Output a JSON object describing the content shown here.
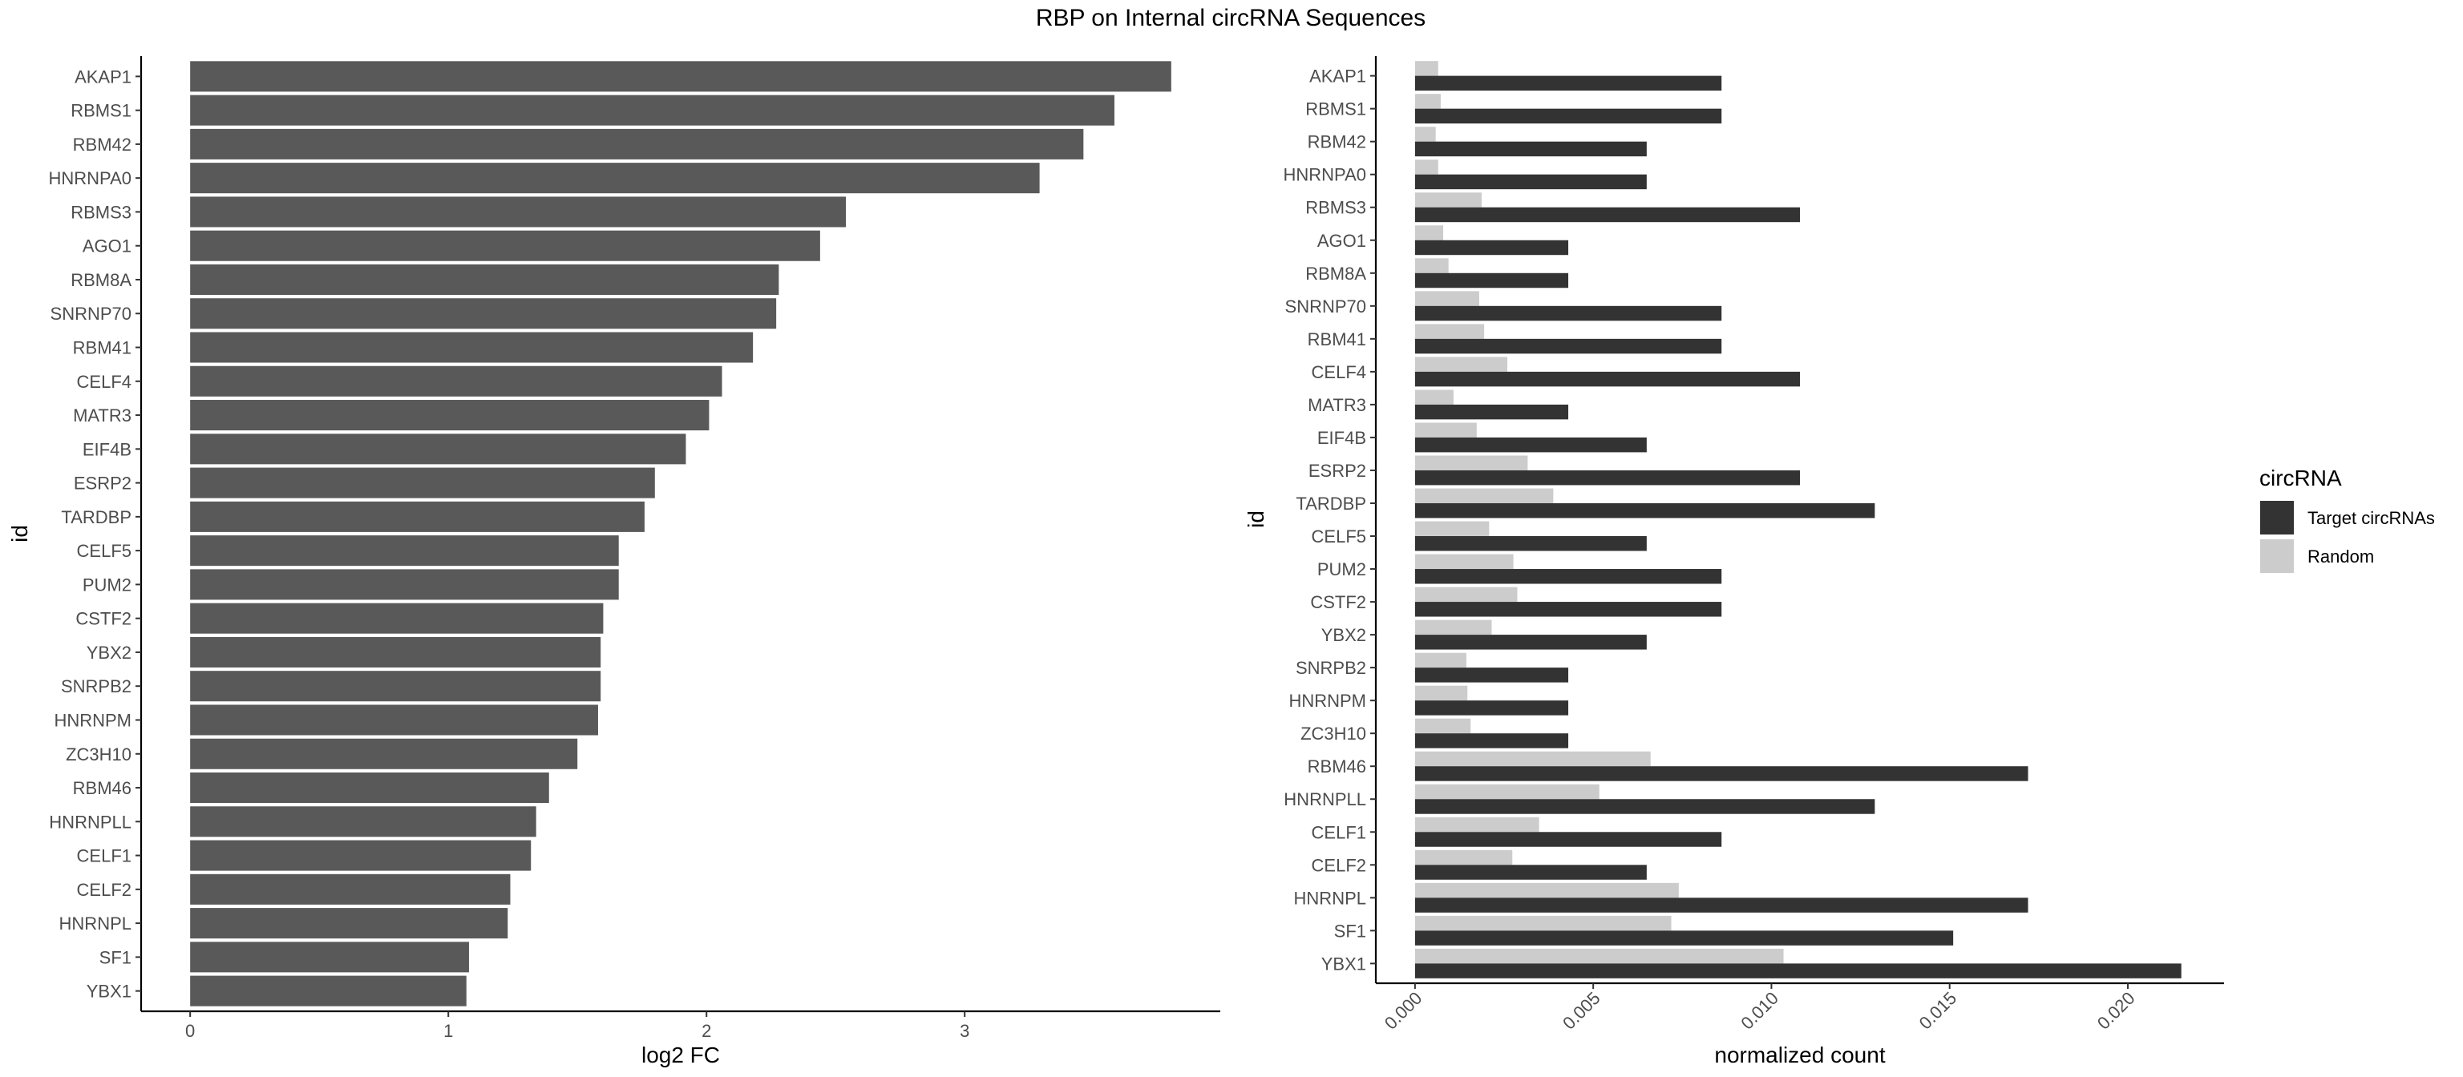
{
  "title": "RBP on Internal circRNA Sequences",
  "colors": {
    "left_bar": "#595959",
    "target": "#333333",
    "random": "#cccccc"
  },
  "chart_data": [
    {
      "type": "bar",
      "orientation": "horizontal",
      "xlabel": "log2 FC",
      "ylabel": "id",
      "xlim": [
        -0.19,
        3.99
      ],
      "xticks": [
        "0",
        "1",
        "2",
        "3"
      ],
      "grid": false,
      "categories": [
        "AKAP1",
        "RBMS1",
        "RBM42",
        "HNRNPA0",
        "RBMS3",
        "AGO1",
        "RBM8A",
        "SNRNP70",
        "RBM41",
        "CELF4",
        "MATR3",
        "EIF4B",
        "ESRP2",
        "TARDBP",
        "CELF5",
        "PUM2",
        "CSTF2",
        "YBX2",
        "SNRPB2",
        "HNRNPM",
        "ZC3H10",
        "RBM46",
        "HNRNPLL",
        "CELF1",
        "CELF2",
        "HNRNPL",
        "SF1",
        "YBX1"
      ],
      "values": [
        3.8,
        3.58,
        3.46,
        3.29,
        2.54,
        2.44,
        2.28,
        2.27,
        2.18,
        2.06,
        2.01,
        1.92,
        1.8,
        1.76,
        1.66,
        1.66,
        1.6,
        1.59,
        1.59,
        1.58,
        1.5,
        1.39,
        1.34,
        1.32,
        1.24,
        1.23,
        1.08,
        1.07
      ]
    },
    {
      "type": "bar",
      "orientation": "horizontal",
      "xlabel": "normalized count",
      "ylabel": "id",
      "xlim": [
        -0.0011,
        0.0227
      ],
      "xticks": [
        "0.000",
        "0.005",
        "0.010",
        "0.015",
        "0.020"
      ],
      "grid": false,
      "legend": {
        "title": "circRNA",
        "position": "right"
      },
      "categories": [
        "AKAP1",
        "RBMS1",
        "RBM42",
        "HNRNPA0",
        "RBMS3",
        "AGO1",
        "RBM8A",
        "SNRNP70",
        "RBM41",
        "CELF4",
        "MATR3",
        "EIF4B",
        "ESRP2",
        "TARDBP",
        "CELF5",
        "PUM2",
        "CSTF2",
        "YBX2",
        "SNRPB2",
        "HNRNPM",
        "ZC3H10",
        "RBM46",
        "HNRNPLL",
        "CELF1",
        "CELF2",
        "HNRNPL",
        "SF1",
        "YBX1"
      ],
      "series": [
        {
          "name": "Target circRNAs",
          "values": [
            0.0086,
            0.0086,
            0.0065,
            0.0065,
            0.0108,
            0.0043,
            0.0043,
            0.0086,
            0.0086,
            0.0108,
            0.0043,
            0.0065,
            0.0108,
            0.0129,
            0.0065,
            0.0086,
            0.0086,
            0.0065,
            0.0043,
            0.0043,
            0.0043,
            0.0172,
            0.0129,
            0.0086,
            0.0065,
            0.0172,
            0.0151,
            0.0215
          ]
        },
        {
          "name": "Random",
          "values": [
            0.00065,
            0.00072,
            0.00058,
            0.00065,
            0.00187,
            0.00079,
            0.00094,
            0.0018,
            0.00194,
            0.00259,
            0.00108,
            0.00173,
            0.00316,
            0.00388,
            0.00208,
            0.00276,
            0.00287,
            0.00215,
            0.00144,
            0.00147,
            0.00156,
            0.00661,
            0.00517,
            0.00348,
            0.00273,
            0.0074,
            0.00719,
            0.01034
          ]
        }
      ]
    }
  ]
}
